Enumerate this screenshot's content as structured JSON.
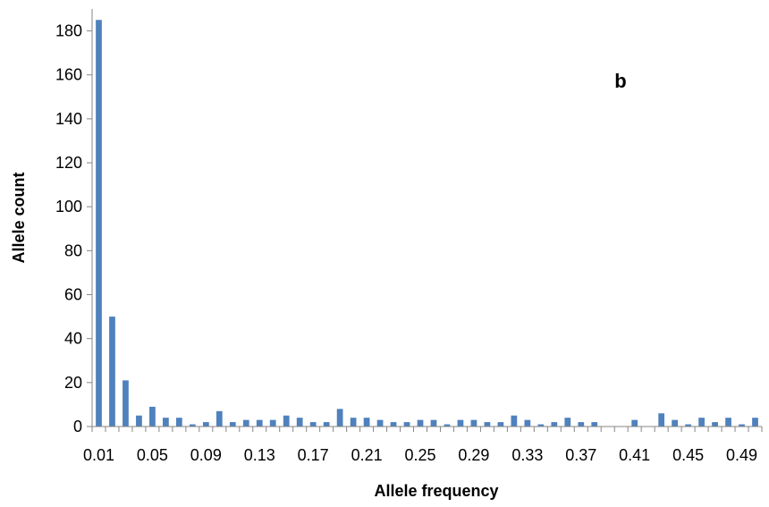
{
  "chart_data": {
    "type": "bar",
    "title": "",
    "annotation": "b",
    "xlabel": "Allele frequency",
    "ylabel": "Allele count",
    "ylim": [
      0,
      190
    ],
    "yticks": [
      0,
      20,
      40,
      60,
      80,
      100,
      120,
      140,
      160,
      180
    ],
    "grid": false,
    "legend": "none",
    "bar_color": "#4F81BD",
    "categories": [
      "0.01",
      "0.02",
      "0.03",
      "0.04",
      "0.05",
      "0.06",
      "0.07",
      "0.08",
      "0.09",
      "0.10",
      "0.11",
      "0.12",
      "0.13",
      "0.14",
      "0.15",
      "0.16",
      "0.17",
      "0.18",
      "0.19",
      "0.20",
      "0.21",
      "0.22",
      "0.23",
      "0.24",
      "0.25",
      "0.26",
      "0.27",
      "0.28",
      "0.29",
      "0.30",
      "0.31",
      "0.32",
      "0.33",
      "0.34",
      "0.35",
      "0.36",
      "0.37",
      "0.38",
      "0.39",
      "0.40",
      "0.41",
      "0.42",
      "0.43",
      "0.44",
      "0.45",
      "0.46",
      "0.47",
      "0.48",
      "0.49",
      "0.50"
    ],
    "visible_tick_labels": [
      "0.01",
      "0.05",
      "0.09",
      "0.13",
      "0.17",
      "0.21",
      "0.25",
      "0.29",
      "0.33",
      "0.37",
      "0.41",
      "0.45",
      "0.49"
    ],
    "values": [
      185,
      50,
      21,
      5,
      9,
      4,
      4,
      1,
      2,
      7,
      2,
      3,
      3,
      3,
      5,
      4,
      2,
      2,
      8,
      4,
      4,
      3,
      2,
      2,
      3,
      3,
      1,
      3,
      3,
      2,
      2,
      5,
      3,
      1,
      2,
      4,
      2,
      2,
      0,
      0,
      3,
      0,
      6,
      3,
      1,
      4,
      2,
      4,
      1,
      4
    ]
  }
}
